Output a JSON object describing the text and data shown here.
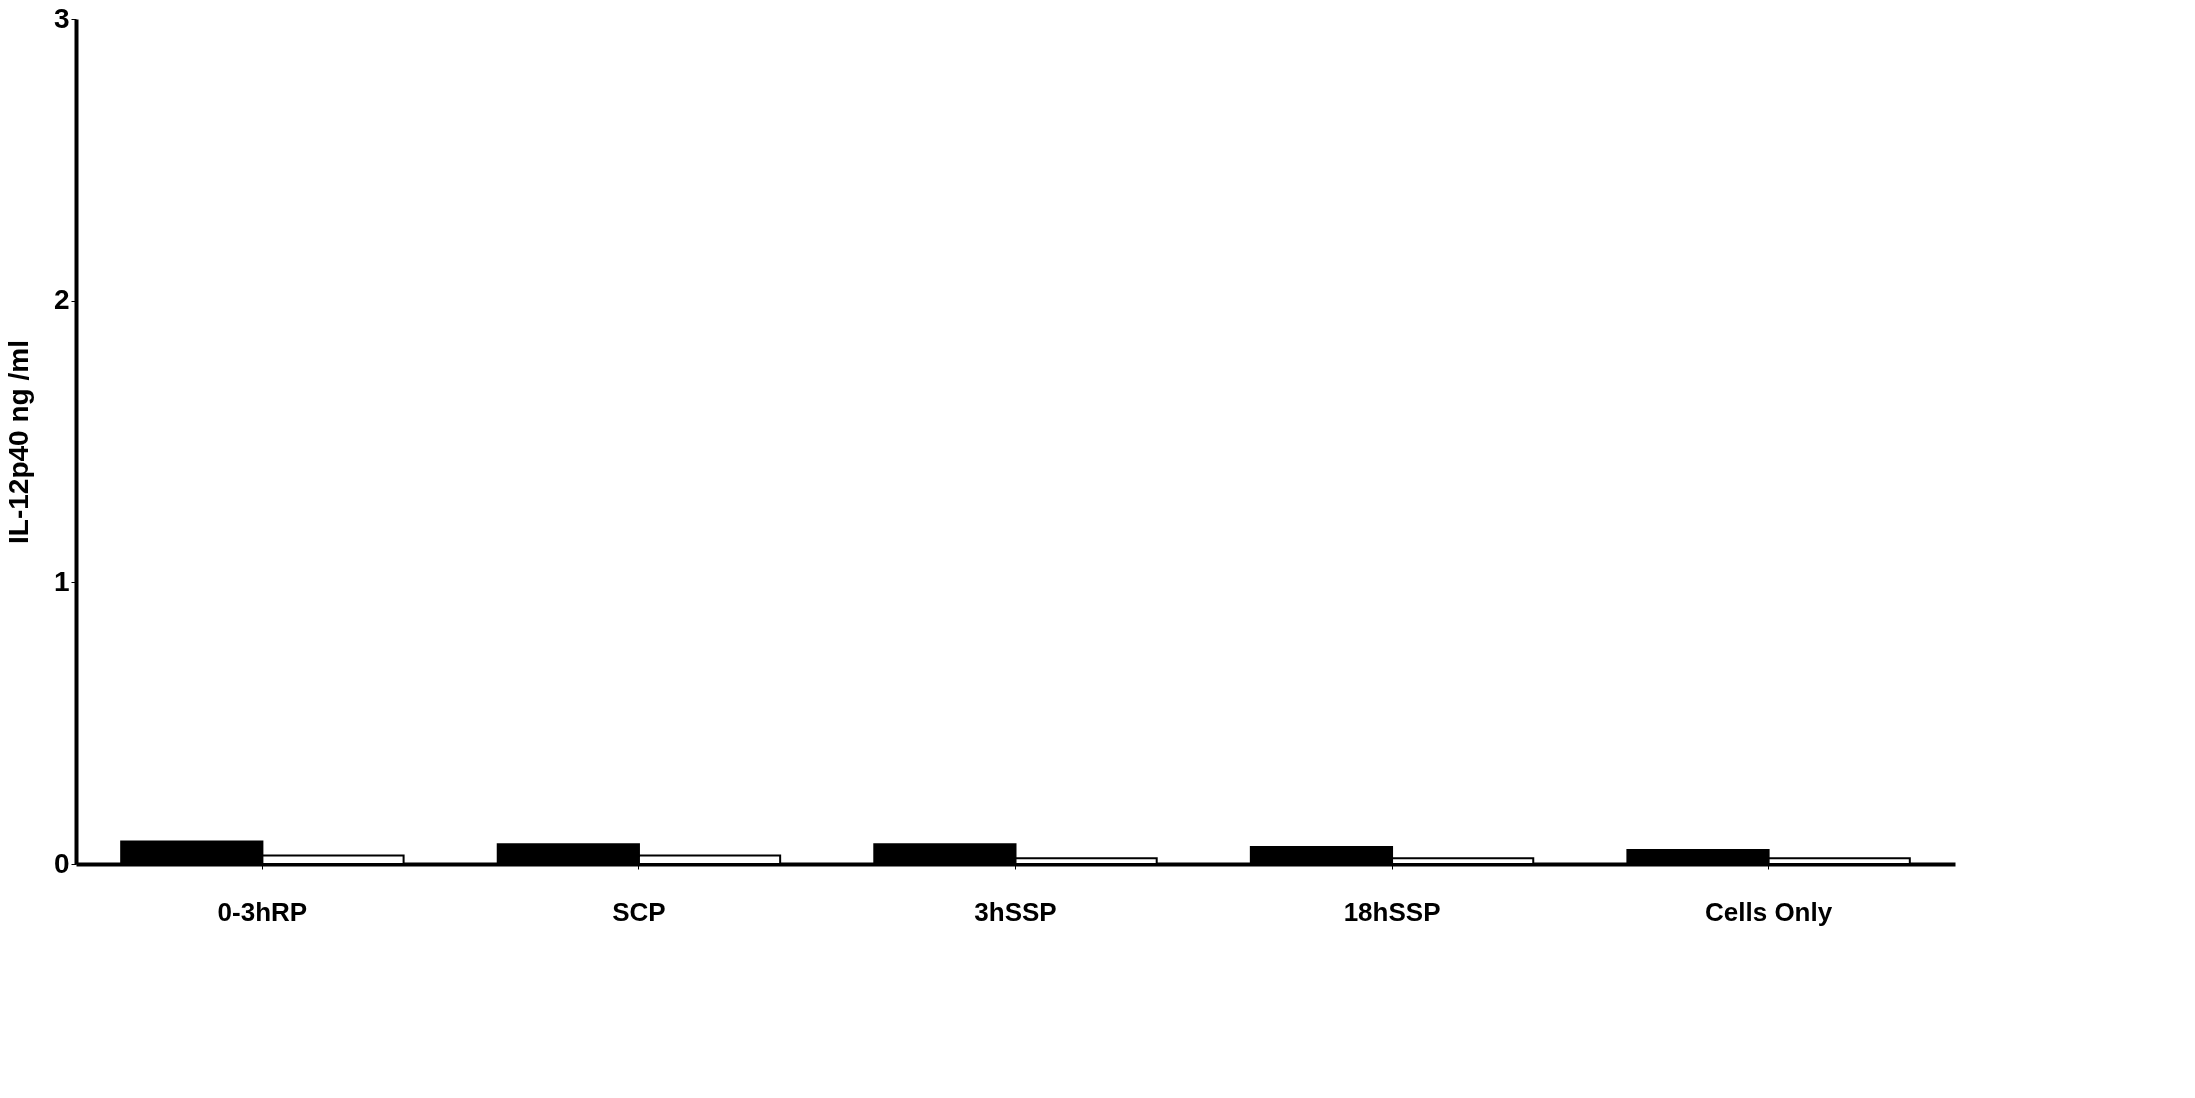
{
  "chart_data": {
    "type": "bar",
    "ylabel": "IL-12p40 ng /ml",
    "categories": [
      "0-3hRP",
      "SCP",
      "3hSSP",
      "18hSSP",
      "Cells Only"
    ],
    "series": [
      {
        "color": "#000000",
        "values": [
          0.08,
          0.07,
          0.07,
          0.06,
          0.05
        ]
      },
      {
        "color": "#ffffff",
        "values": [
          0.03,
          0.03,
          0.02,
          0.02,
          0.02
        ]
      }
    ],
    "ylim": [
      0,
      3
    ],
    "yticks": [
      0,
      1,
      2,
      3
    ],
    "grid": false,
    "legend": false
  }
}
